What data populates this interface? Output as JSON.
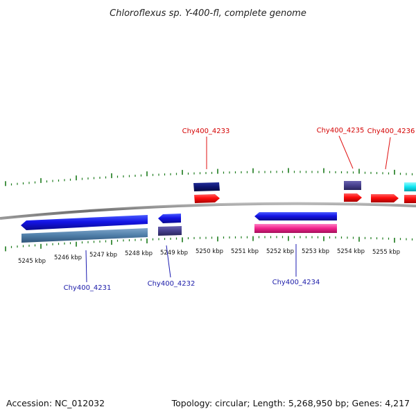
{
  "title": "Chloroflexus sp. Y-400-fl, complete genome",
  "accession_label": "Accession: NC_012032",
  "summary_label": "Topology: circular; Length: 5,268,950 bp; Genes: 4,217",
  "colors": {
    "backbone": "#8a8a8a",
    "ticks": "#1a7a1a",
    "forward_label": "#d40000",
    "reverse_label": "#1a1aa8"
  },
  "scale": {
    "labels": [
      "5245 kbp",
      "5246 kbp",
      "5247 kbp",
      "5248 kbp",
      "5249 kbp",
      "5250 kbp",
      "5251 kbp",
      "5252 kbp",
      "5253 kbp",
      "5254 kbp",
      "5255 kbp"
    ]
  },
  "genes": {
    "labeled": [
      {
        "name": "Chy400_4231",
        "strand": "reverse"
      },
      {
        "name": "Chy400_4232",
        "strand": "reverse"
      },
      {
        "name": "Chy400_4233",
        "strand": "forward"
      },
      {
        "name": "Chy400_4234",
        "strand": "reverse"
      },
      {
        "name": "Chy400_4235",
        "strand": "forward"
      },
      {
        "name": "Chy400_4236",
        "strand": "forward"
      }
    ]
  }
}
